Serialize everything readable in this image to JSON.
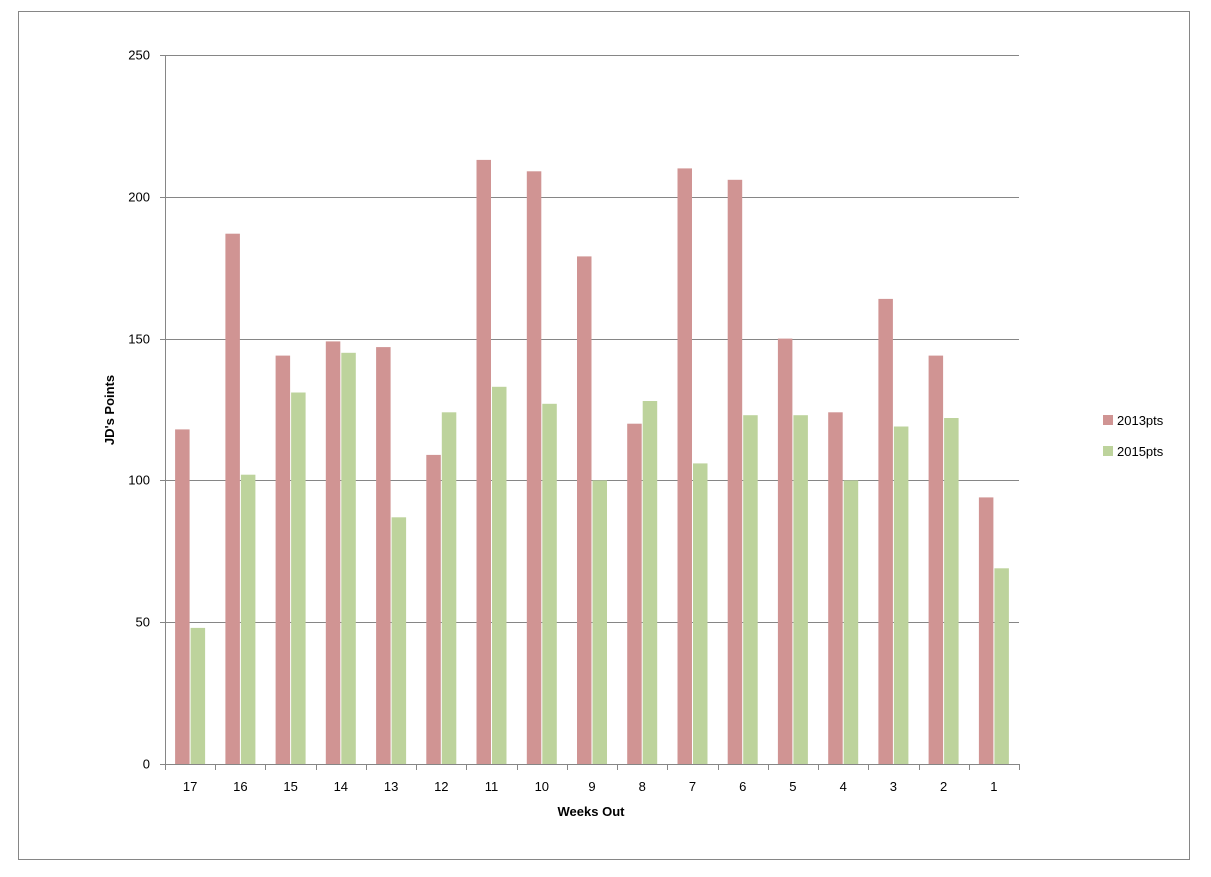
{
  "chart_data": {
    "type": "bar",
    "title": "",
    "xlabel": "Weeks Out",
    "ylabel": "JD's Points",
    "ylim": [
      0,
      250
    ],
    "yticks": [
      0,
      50,
      100,
      150,
      200,
      250
    ],
    "grid": true,
    "legend_position": "right",
    "categories": [
      "17",
      "16",
      "15",
      "14",
      "13",
      "12",
      "11",
      "10",
      "9",
      "8",
      "7",
      "6",
      "5",
      "4",
      "3",
      "2",
      "1"
    ],
    "series": [
      {
        "name": "2013pts",
        "color": "#d09493",
        "values": [
          118,
          187,
          144,
          149,
          147,
          109,
          213,
          209,
          179,
          120,
          210,
          206,
          150,
          124,
          164,
          144,
          94
        ]
      },
      {
        "name": "2015pts",
        "color": "#bdd39c",
        "values": [
          48,
          102,
          131,
          145,
          87,
          124,
          133,
          127,
          100,
          128,
          106,
          123,
          123,
          100,
          119,
          122,
          69
        ]
      }
    ]
  }
}
